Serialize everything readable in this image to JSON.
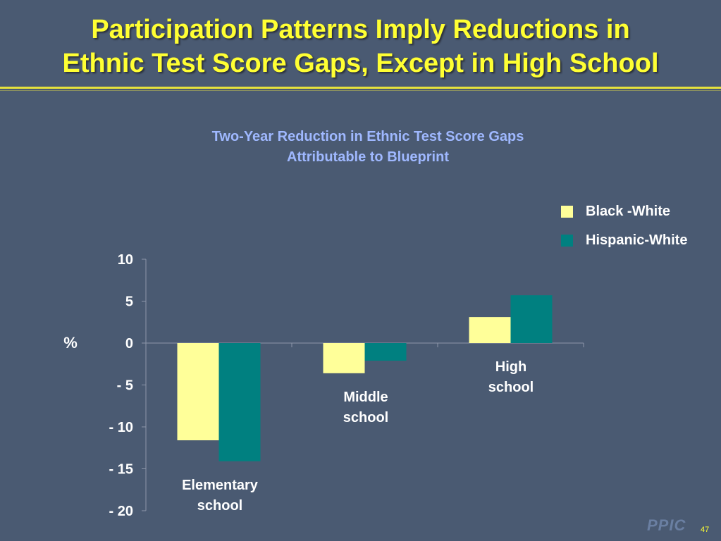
{
  "slide": {
    "title_line1": "Participation Patterns Imply Reductions in",
    "title_line2": "Ethnic Test Score Gaps, Except in High School",
    "logo_text": "PPIC",
    "page_number": "47"
  },
  "chart_data": {
    "type": "bar",
    "title_line1": "Two-Year Reduction in Ethnic Test Score Gaps",
    "title_line2": "Attributable to Blueprint",
    "ylabel": "%",
    "ylim": [
      -20,
      10
    ],
    "yticks": [
      10,
      5,
      0,
      -5,
      -10,
      -15,
      -20
    ],
    "ytick_labels": [
      "10",
      "5",
      "0",
      "- 5",
      "- 10",
      "- 15",
      "- 20"
    ],
    "categories": [
      [
        "Elementary",
        "school"
      ],
      [
        "Middle",
        "school"
      ],
      [
        "High",
        "school"
      ]
    ],
    "series": [
      {
        "name": "Black -White",
        "color": "#ffff99",
        "values": [
          -11.6,
          -3.6,
          3.1
        ]
      },
      {
        "name": "Hispanic-White",
        "color": "#008080",
        "values": [
          -14.1,
          -2.1,
          5.7
        ]
      }
    ],
    "legend_position": "top-right",
    "grid": false
  }
}
